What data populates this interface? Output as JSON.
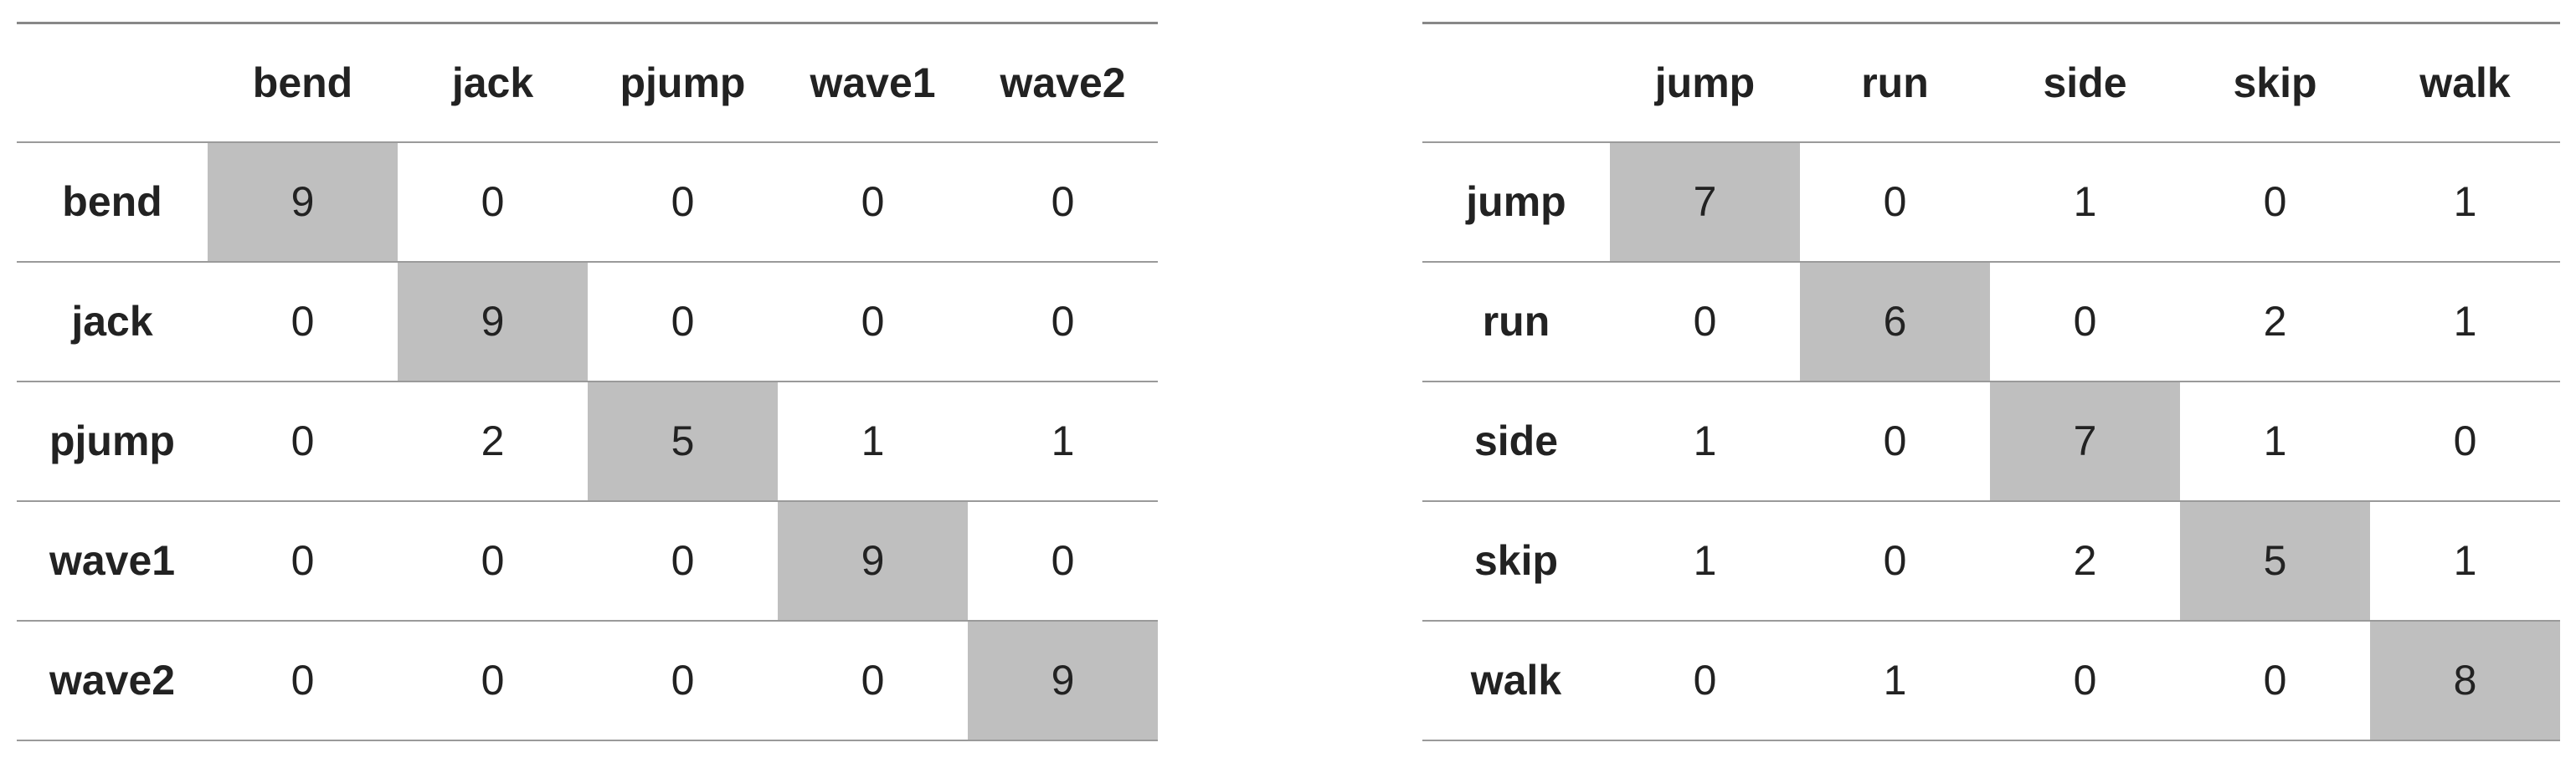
{
  "tables": [
    {
      "columns": [
        "bend",
        "jack",
        "pjump",
        "wave1",
        "wave2"
      ],
      "rows": [
        {
          "label": "bend",
          "values": [
            9,
            0,
            0,
            0,
            0
          ]
        },
        {
          "label": "jack",
          "values": [
            0,
            9,
            0,
            0,
            0
          ]
        },
        {
          "label": "pjump",
          "values": [
            0,
            2,
            5,
            1,
            1
          ]
        },
        {
          "label": "wave1",
          "values": [
            0,
            0,
            0,
            9,
            0
          ]
        },
        {
          "label": "wave2",
          "values": [
            0,
            0,
            0,
            0,
            9
          ]
        }
      ]
    },
    {
      "columns": [
        "jump",
        "run",
        "side",
        "skip",
        "walk"
      ],
      "rows": [
        {
          "label": "jump",
          "values": [
            7,
            0,
            1,
            0,
            1
          ]
        },
        {
          "label": "run",
          "values": [
            0,
            6,
            0,
            2,
            1
          ]
        },
        {
          "label": "side",
          "values": [
            1,
            0,
            7,
            1,
            0
          ]
        },
        {
          "label": "skip",
          "values": [
            1,
            0,
            2,
            5,
            1
          ]
        },
        {
          "label": "walk",
          "values": [
            0,
            1,
            0,
            0,
            8
          ]
        }
      ]
    }
  ]
}
